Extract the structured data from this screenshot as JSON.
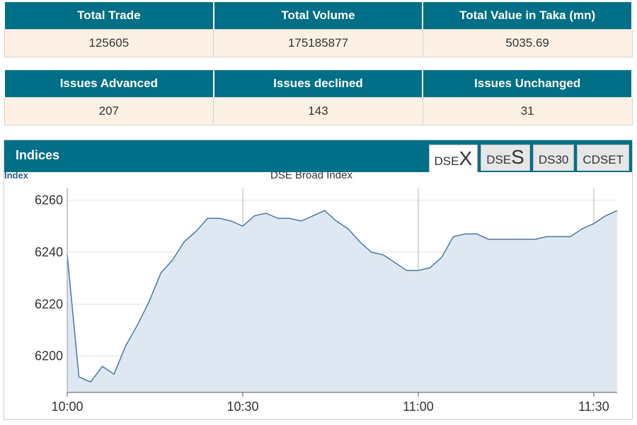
{
  "summary": {
    "headers": [
      "Total Trade",
      "Total Volume",
      "Total Value in Taka (mn)"
    ],
    "values": [
      "125605",
      "175185877",
      "5035.69"
    ]
  },
  "issues": {
    "headers": [
      "Issues Advanced",
      "Issues declined",
      "Issues Unchanged"
    ],
    "values": [
      "207",
      "143",
      "31"
    ]
  },
  "indices": {
    "title": "Indices",
    "tabs": [
      {
        "prefix": "DSE",
        "suffix": "X",
        "active": true
      },
      {
        "prefix": "DSE",
        "suffix": "S",
        "active": false
      },
      {
        "prefix": "DS30",
        "suffix": "",
        "active": false
      },
      {
        "prefix": "CDSET",
        "suffix": "",
        "active": false
      }
    ]
  },
  "colors": {
    "header_bg": "#006f87",
    "cell_bg": "#fdf1e6",
    "line": "#4a78a8",
    "area": "#dfe8f2"
  },
  "chart_data": {
    "type": "area",
    "title": "DSE Broad Index",
    "ylabel": "Index",
    "xlabel": "",
    "x_ticks": [
      "10:00",
      "10:30",
      "11:00",
      "11:30"
    ],
    "y_ticks": [
      6200,
      6220,
      6240,
      6260
    ],
    "ylim": [
      6186,
      6264
    ],
    "x_minutes_range": [
      0,
      47
    ],
    "grid": true,
    "series": [
      {
        "x": [
          0,
          1,
          2,
          3,
          4,
          5,
          6,
          7,
          8,
          9,
          10,
          11,
          12,
          13,
          14,
          15,
          16,
          17,
          18,
          19,
          20,
          21,
          22,
          23,
          24,
          25,
          26,
          27,
          28,
          29,
          30,
          31,
          32,
          33,
          34,
          35,
          36,
          37,
          38,
          39,
          40,
          41,
          42,
          43,
          44,
          45,
          46,
          47
        ],
        "values": [
          6239,
          6192,
          6190,
          6196,
          6193,
          6204,
          6212,
          6221,
          6232,
          6237,
          6244,
          6248,
          6253,
          6253,
          6252,
          6250,
          6254,
          6255,
          6253,
          6253,
          6252,
          6254,
          6256,
          6252,
          6249,
          6244,
          6240,
          6239,
          6236,
          6233,
          6233,
          6234,
          6238,
          6246,
          6247,
          6247,
          6245,
          6245,
          6245,
          6245,
          6245,
          6246,
          6246,
          6246,
          6249,
          6251,
          6254,
          6256
        ]
      }
    ]
  }
}
